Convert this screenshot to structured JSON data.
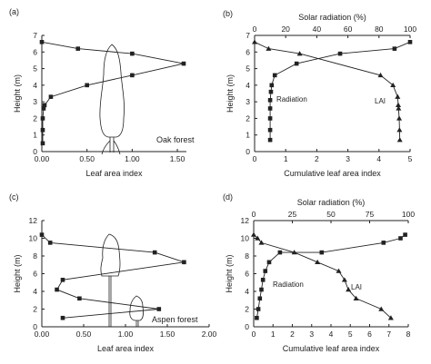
{
  "chart_data": [
    {
      "panel": "(a)",
      "type": "line",
      "annotation": "Oak forest",
      "xlabel": "Leaf area index",
      "ylabel": "Height (m)",
      "xlim": [
        0,
        1.6
      ],
      "ylim": [
        0,
        7
      ],
      "xticks": [
        0,
        0.5,
        1,
        1.5
      ],
      "xtick_labels": [
        "0.00",
        "0.50",
        "1.00",
        "1.50"
      ],
      "yticks": [
        0,
        1,
        2,
        3,
        4,
        5,
        6,
        7
      ],
      "series": [
        {
          "marker": "square",
          "x": [
            0.01,
            0.01,
            0.01,
            0.02,
            0.03,
            0.1,
            0.5,
            1.0,
            1.57,
            1.0,
            0.4,
            0.0
          ],
          "y": [
            0.5,
            1.3,
            2.0,
            2.6,
            2.8,
            3.3,
            4.0,
            4.6,
            5.3,
            5.9,
            6.2,
            6.6
          ]
        }
      ]
    },
    {
      "panel": "(b)",
      "type": "line",
      "xlabel": "Cumulative leaf area index",
      "x2label": "Solar radiation (%)",
      "ylabel": "Height (m)",
      "xlim": [
        0,
        5
      ],
      "x2lim": [
        0,
        100
      ],
      "ylim": [
        0,
        7
      ],
      "xticks": [
        0,
        1,
        2,
        3,
        4,
        5
      ],
      "x2ticks": [
        0,
        20,
        40,
        60,
        80,
        100
      ],
      "yticks": [
        0,
        1,
        2,
        3,
        4,
        5,
        6,
        7
      ],
      "series": [
        {
          "name": "Radiation",
          "axis": "top",
          "marker": "square",
          "x": [
            10,
            10,
            10,
            10,
            10,
            10.5,
            11,
            13,
            27,
            55,
            90,
            100
          ],
          "y": [
            0.7,
            1.3,
            2.0,
            2.6,
            3.1,
            3.6,
            4.0,
            4.6,
            5.3,
            5.9,
            6.2,
            6.6
          ]
        },
        {
          "name": "LAI",
          "axis": "bottom",
          "marker": "triangle",
          "x": [
            0,
            0.45,
            1.45,
            4.05,
            4.45,
            4.6,
            4.62,
            4.63,
            4.65,
            4.66,
            4.67
          ],
          "y": [
            6.6,
            6.2,
            5.9,
            4.6,
            4.0,
            3.3,
            2.8,
            2.6,
            2.0,
            1.3,
            0.7
          ]
        }
      ]
    },
    {
      "panel": "(c)",
      "type": "line",
      "annotation": "Aspen forest",
      "xlabel": "Leaf area index",
      "ylabel": "Height (m)",
      "xlim": [
        0,
        2
      ],
      "ylim": [
        0,
        12
      ],
      "xticks": [
        0,
        0.5,
        1,
        1.5,
        2
      ],
      "xtick_labels": [
        "0.00",
        "0.50",
        "1.00",
        "1.50",
        "2.00"
      ],
      "yticks": [
        0,
        2,
        4,
        6,
        8,
        10,
        12
      ],
      "series": [
        {
          "marker": "square",
          "x": [
            0.25,
            1.4,
            0.45,
            0.18,
            0.25,
            1.7,
            1.35,
            0.1,
            0.0
          ],
          "y": [
            1.0,
            2.0,
            3.2,
            4.2,
            5.3,
            7.3,
            8.4,
            9.5,
            10.4
          ]
        }
      ]
    },
    {
      "panel": "(d)",
      "type": "line",
      "xlabel": "Cumulative leaf area index",
      "x2label": "Solar radiation (%)",
      "ylabel": "Height (m)",
      "xlim": [
        0,
        8
      ],
      "x2lim": [
        0,
        100
      ],
      "ylim": [
        0,
        12
      ],
      "xticks": [
        0,
        1,
        2,
        3,
        4,
        5,
        6,
        7,
        8
      ],
      "x2ticks": [
        0,
        25,
        50,
        75,
        100
      ],
      "yticks": [
        0,
        2,
        4,
        6,
        8,
        10,
        12
      ],
      "series": [
        {
          "name": "Radiation",
          "axis": "top",
          "marker": "square",
          "x": [
            2,
            3,
            4,
            5,
            6,
            7.5,
            10,
            17,
            44,
            84,
            95,
            98
          ],
          "y": [
            1.0,
            2.0,
            3.2,
            4.2,
            5.3,
            6.3,
            7.3,
            8.4,
            8.4,
            9.5,
            10.0,
            10.4
          ]
        },
        {
          "name": "LAI",
          "axis": "bottom",
          "marker": "triangle",
          "x": [
            0,
            0.2,
            0.4,
            2.1,
            3.3,
            4.4,
            4.7,
            4.9,
            5.3,
            6.6,
            7.1
          ],
          "y": [
            10.4,
            10.0,
            9.5,
            8.4,
            7.3,
            6.3,
            5.3,
            4.2,
            3.2,
            2.0,
            1.0
          ]
        }
      ]
    }
  ]
}
